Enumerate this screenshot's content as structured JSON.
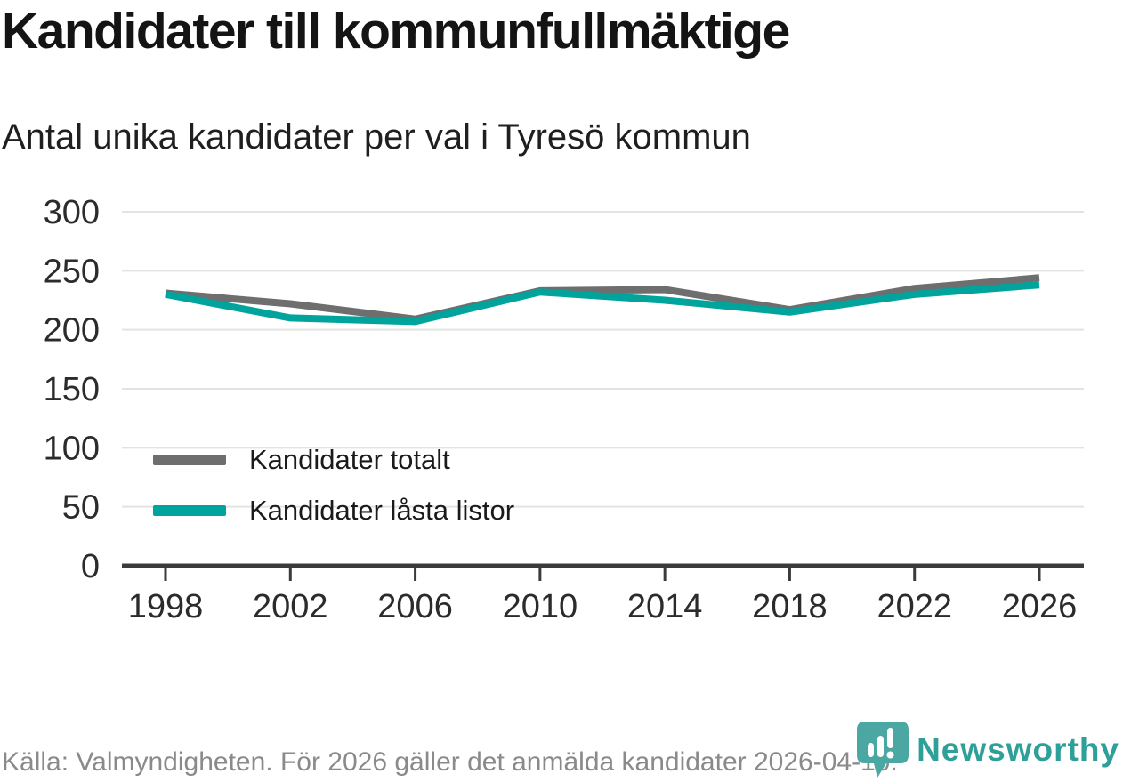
{
  "header": {
    "title": "Kandidater till kommunfullmäktige",
    "subtitle": "Antal unika kandidater per val i Tyresö kommun"
  },
  "footer": {
    "source": "Källa: Valmyndigheten. För 2026 gäller det anmälda kandidater 2026-04-10."
  },
  "logo": {
    "brand": "Newsworthy",
    "icon": "newsworthy-pin-barchart-icon",
    "icon_color": "#4ba7a2",
    "text_color": "#2f9f99"
  },
  "chart_data": {
    "type": "line",
    "title": "Kandidater till kommunfullmäktige",
    "subtitle": "Antal unika kandidater per val i Tyresö kommun",
    "xlabel": "",
    "ylabel": "",
    "x": [
      1998,
      2002,
      2006,
      2010,
      2014,
      2018,
      2022,
      2026
    ],
    "series": [
      {
        "name": "Kandidater totalt",
        "color": "#6e6e6e",
        "values": [
          231,
          222,
          209,
          233,
          234,
          217,
          235,
          244
        ]
      },
      {
        "name": "Kandidater låsta listor",
        "color": "#00a49c",
        "values": [
          230,
          210,
          207,
          232,
          225,
          215,
          230,
          238
        ]
      }
    ],
    "ylim": [
      0,
      300
    ],
    "yticks": [
      0,
      50,
      100,
      150,
      200,
      250,
      300
    ],
    "grid": true,
    "grid_color": "#e3e3e3",
    "axis_color": "#3b3b3b",
    "line_width": 8,
    "legend_position": "inside-left"
  }
}
